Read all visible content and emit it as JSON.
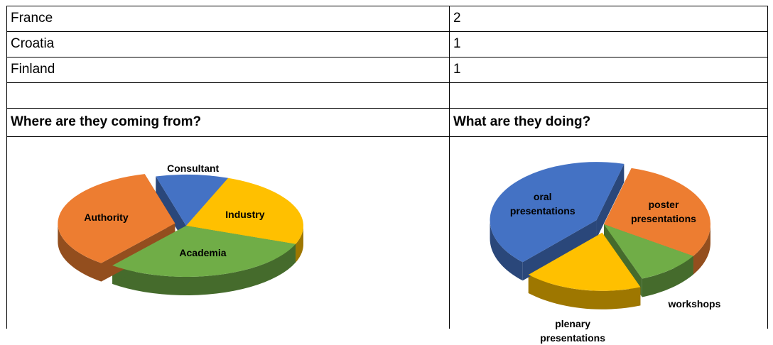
{
  "table": {
    "rows": [
      [
        "France",
        "2"
      ],
      [
        "Croatia",
        "1"
      ],
      [
        "Finland",
        "1"
      ],
      [
        "",
        ""
      ]
    ]
  },
  "chart_data": [
    {
      "type": "pie",
      "title": "Where are they coming from?",
      "categories": [
        "Consultant",
        "Industry",
        "Academia",
        "Authority"
      ],
      "values": [
        10,
        25,
        30,
        35
      ],
      "colors": [
        "#4472c4",
        "#ffc000",
        "#70ad47",
        "#ed7d31"
      ],
      "exploded": [
        false,
        false,
        false,
        true
      ]
    },
    {
      "type": "pie",
      "title": "What are they doing?",
      "categories": [
        "poster presentations",
        "workshops",
        "plenary presentations",
        "oral presentations"
      ],
      "values": [
        30,
        10,
        18,
        42
      ],
      "colors": [
        "#ed7d31",
        "#70ad47",
        "#ffc000",
        "#4472c4"
      ],
      "exploded": [
        false,
        false,
        true,
        true
      ]
    }
  ]
}
